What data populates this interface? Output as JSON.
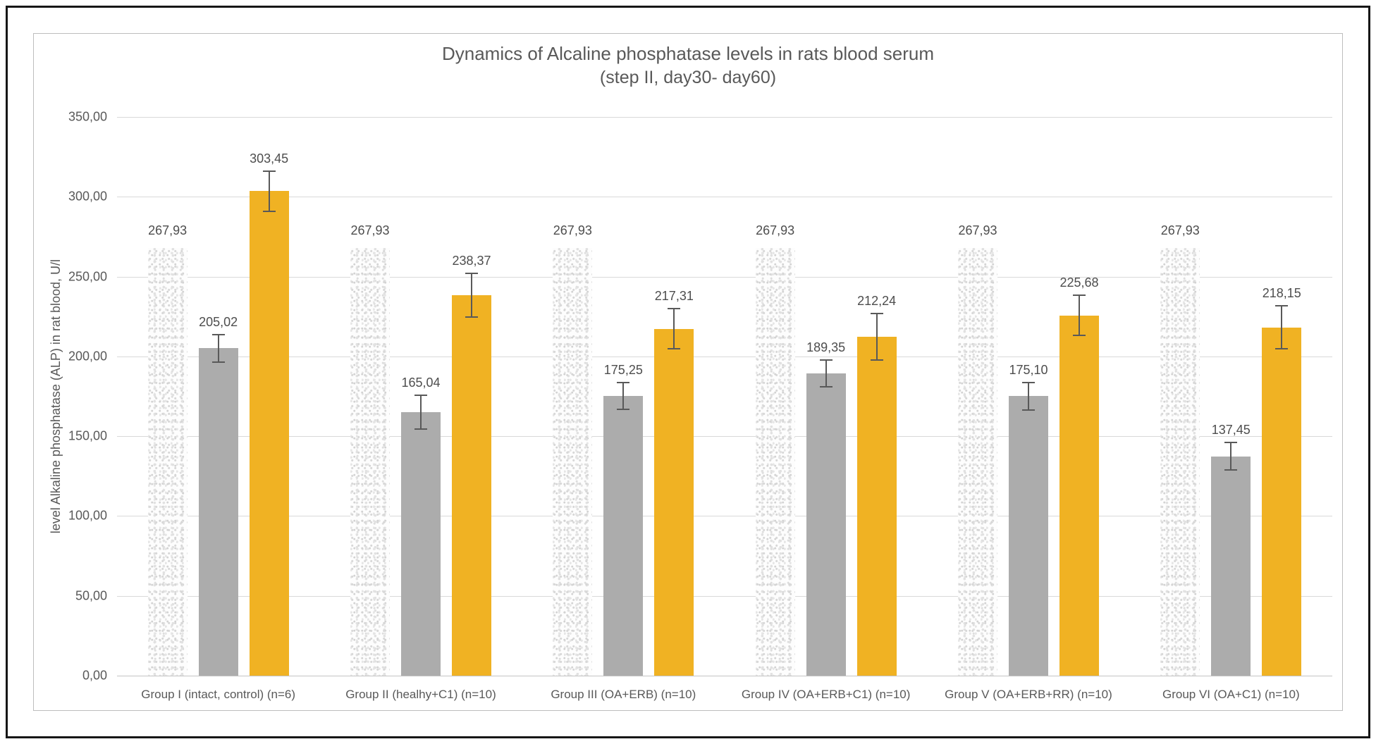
{
  "chart_data": {
    "type": "bar",
    "title": "Dynamics of Alcaline phosphatase levels in rats blood serum",
    "subtitle": "(step II, day30- day60)",
    "ylabel": "level Alkaline phosphatase (ALP) in rat blood, U/l",
    "xlabel": "",
    "ylim": [
      0,
      350
    ],
    "ytick_step": 50,
    "yticks": [
      "350,00",
      "300,00",
      "250,00",
      "200,00",
      "150,00",
      "100,00",
      "50,00",
      "0,00"
    ],
    "grid": true,
    "legend_position": "none",
    "decimal_separator": ",",
    "categories": [
      "Group I (intact, control) (n=6)",
      "Group II (healhy+C1) (n=10)",
      "Group III (OA+ERB) (n=10)",
      "Group IV (OA+ERB+C1) (n=10)",
      "Group V (OA+ERB+RR) (n=10)",
      "Group VI (OA+C1) (n=10)"
    ],
    "series": [
      {
        "name": "reference-speckled",
        "style": "speckle-pattern",
        "color": "#fdfdfd",
        "values": [
          267.93,
          267.93,
          267.93,
          267.93,
          267.93,
          267.93
        ],
        "labels": [
          "267,93",
          "267,93",
          "267,93",
          "267,93",
          "267,93",
          "267,93"
        ],
        "errors": null
      },
      {
        "name": "gray-series",
        "style": "solid-gray",
        "color": "#acacac",
        "values": [
          205.02,
          165.04,
          175.25,
          189.35,
          175.1,
          137.45
        ],
        "labels": [
          "205,02",
          "165,04",
          "175,25",
          "189,35",
          "175,10",
          "137,45"
        ],
        "errors": [
          9,
          11,
          9,
          9,
          9,
          9
        ]
      },
      {
        "name": "yellow-series",
        "style": "solid-yellow",
        "color": "#f0b223",
        "values": [
          303.45,
          238.37,
          217.31,
          212.24,
          225.68,
          218.15
        ],
        "labels": [
          "303,45",
          "238,37",
          "217,31",
          "212,24",
          "225,68",
          "218,15"
        ],
        "errors": [
          13,
          14,
          13,
          15,
          13,
          14
        ]
      }
    ]
  },
  "colors": {
    "frame": "#161616",
    "chart_border": "#bdbdbd",
    "gridline": "#d9d9d9",
    "axis_line": "#c3c3c3",
    "text": "#595959",
    "value_label_text": "#4d4d4d",
    "error_bar": "#595959",
    "bar_gray": "#acacac",
    "bar_yellow": "#f0b223"
  }
}
